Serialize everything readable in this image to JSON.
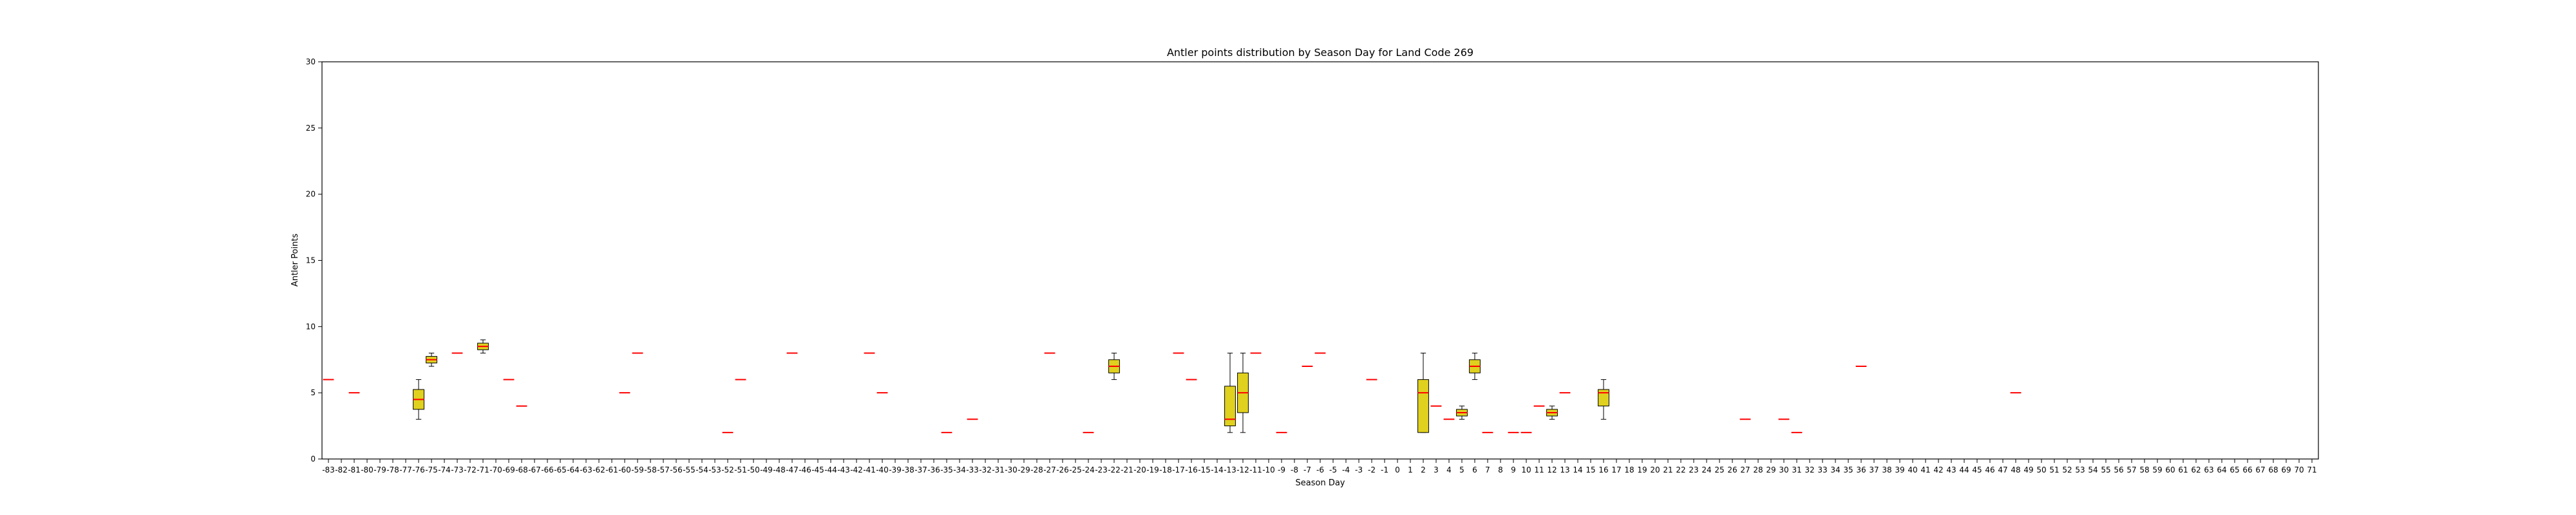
{
  "chart_data": {
    "type": "box",
    "title": "Antler points distribution by Season Day for Land Code 269",
    "xlabel": "Season Day",
    "ylabel": "Antler Points",
    "ylim": [
      0,
      30
    ],
    "yticks": [
      0,
      5,
      10,
      15,
      20,
      25,
      30
    ],
    "categories": [
      "-83",
      "-82",
      "-81",
      "-80",
      "-79",
      "-78",
      "-77",
      "-76",
      "-75",
      "-74",
      "-73",
      "-72",
      "-71",
      "-70",
      "-69",
      "-68",
      "-67",
      "-66",
      "-65",
      "-64",
      "-63",
      "-62",
      "-61",
      "-60",
      "-59",
      "-58",
      "-57",
      "-56",
      "-55",
      "-54",
      "-53",
      "-52",
      "-51",
      "-50",
      "-49",
      "-48",
      "-47",
      "-46",
      "-45",
      "-44",
      "-43",
      "-42",
      "-41",
      "-40",
      "-39",
      "-38",
      "-37",
      "-36",
      "-35",
      "-34",
      "-33",
      "-32",
      "-31",
      "-30",
      "-29",
      "-28",
      "-27",
      "-26",
      "-25",
      "-24",
      "-23",
      "-22",
      "-21",
      "-20",
      "-19",
      "-18",
      "-17",
      "-16",
      "-15",
      "-14",
      "-13",
      "-12",
      "-11",
      "-10",
      "-9",
      "-8",
      "-7",
      "-6",
      "-5",
      "-4",
      "-3",
      "-2",
      "-1",
      "0",
      "1",
      "2",
      "3",
      "4",
      "5",
      "6",
      "7",
      "8",
      "9",
      "10",
      "11",
      "12",
      "13",
      "14",
      "15",
      "16",
      "17",
      "18",
      "19",
      "20",
      "21",
      "22",
      "23",
      "24",
      "25",
      "26",
      "27",
      "28",
      "29",
      "30",
      "31",
      "32",
      "33",
      "34",
      "35",
      "36",
      "37",
      "38",
      "39",
      "40",
      "41",
      "42",
      "43",
      "44",
      "45",
      "46",
      "47",
      "48",
      "49",
      "50",
      "51",
      "52",
      "53",
      "54",
      "55",
      "56",
      "57",
      "58",
      "59",
      "60",
      "61",
      "62",
      "63",
      "64",
      "65",
      "66",
      "67",
      "68",
      "69",
      "70",
      "71"
    ],
    "boxes": [
      {
        "day": "-83",
        "whislo": 6,
        "q1": 6,
        "med": 6,
        "q3": 6,
        "whishi": 6
      },
      {
        "day": "-81",
        "whislo": 5,
        "q1": 5,
        "med": 5,
        "q3": 5,
        "whishi": 5
      },
      {
        "day": "-76",
        "whislo": 3,
        "q1": 3.75,
        "med": 4.5,
        "q3": 5.25,
        "whishi": 6
      },
      {
        "day": "-75",
        "whislo": 7,
        "q1": 7.25,
        "med": 7.5,
        "q3": 7.75,
        "whishi": 8
      },
      {
        "day": "-73",
        "whislo": 8,
        "q1": 8,
        "med": 8,
        "q3": 8,
        "whishi": 8
      },
      {
        "day": "-71",
        "whislo": 8,
        "q1": 8.25,
        "med": 8.5,
        "q3": 8.75,
        "whishi": 9
      },
      {
        "day": "-69",
        "whislo": 6,
        "q1": 6,
        "med": 6,
        "q3": 6,
        "whishi": 6
      },
      {
        "day": "-68",
        "whislo": 4,
        "q1": 4,
        "med": 4,
        "q3": 4,
        "whishi": 4
      },
      {
        "day": "-60",
        "whislo": 5,
        "q1": 5,
        "med": 5,
        "q3": 5,
        "whishi": 5
      },
      {
        "day": "-59",
        "whislo": 8,
        "q1": 8,
        "med": 8,
        "q3": 8,
        "whishi": 8
      },
      {
        "day": "-52",
        "whislo": 2,
        "q1": 2,
        "med": 2,
        "q3": 2,
        "whishi": 2
      },
      {
        "day": "-51",
        "whislo": 6,
        "q1": 6,
        "med": 6,
        "q3": 6,
        "whishi": 6
      },
      {
        "day": "-47",
        "whislo": 8,
        "q1": 8,
        "med": 8,
        "q3": 8,
        "whishi": 8
      },
      {
        "day": "-41",
        "whislo": 8,
        "q1": 8,
        "med": 8,
        "q3": 8,
        "whishi": 8
      },
      {
        "day": "-40",
        "whislo": 5,
        "q1": 5,
        "med": 5,
        "q3": 5,
        "whishi": 5
      },
      {
        "day": "-35",
        "whislo": 2,
        "q1": 2,
        "med": 2,
        "q3": 2,
        "whishi": 2
      },
      {
        "day": "-33",
        "whislo": 3,
        "q1": 3,
        "med": 3,
        "q3": 3,
        "whishi": 3
      },
      {
        "day": "-27",
        "whislo": 8,
        "q1": 8,
        "med": 8,
        "q3": 8,
        "whishi": 8
      },
      {
        "day": "-24",
        "whislo": 2,
        "q1": 2,
        "med": 2,
        "q3": 2,
        "whishi": 2
      },
      {
        "day": "-22",
        "whislo": 6,
        "q1": 6.5,
        "med": 7,
        "q3": 7.5,
        "whishi": 8
      },
      {
        "day": "-17",
        "whislo": 8,
        "q1": 8,
        "med": 8,
        "q3": 8,
        "whishi": 8
      },
      {
        "day": "-16",
        "whislo": 6,
        "q1": 6,
        "med": 6,
        "q3": 6,
        "whishi": 6
      },
      {
        "day": "-13",
        "whislo": 2,
        "q1": 2.5,
        "med": 3,
        "q3": 5.5,
        "whishi": 8
      },
      {
        "day": "-12",
        "whislo": 2,
        "q1": 3.5,
        "med": 5,
        "q3": 6.5,
        "whishi": 8
      },
      {
        "day": "-11",
        "whislo": 8,
        "q1": 8,
        "med": 8,
        "q3": 8,
        "whishi": 8
      },
      {
        "day": "-9",
        "whislo": 2,
        "q1": 2,
        "med": 2,
        "q3": 2,
        "whishi": 2
      },
      {
        "day": "-7",
        "whislo": 7,
        "q1": 7,
        "med": 7,
        "q3": 7,
        "whishi": 7
      },
      {
        "day": "-6",
        "whislo": 8,
        "q1": 8,
        "med": 8,
        "q3": 8,
        "whishi": 8
      },
      {
        "day": "-2",
        "whislo": 6,
        "q1": 6,
        "med": 6,
        "q3": 6,
        "whishi": 6
      },
      {
        "day": "2",
        "whislo": 2,
        "q1": 2,
        "med": 5,
        "q3": 6,
        "whishi": 8
      },
      {
        "day": "3",
        "whislo": 4,
        "q1": 4,
        "med": 4,
        "q3": 4,
        "whishi": 4
      },
      {
        "day": "4",
        "whislo": 3,
        "q1": 3,
        "med": 3,
        "q3": 3,
        "whishi": 3
      },
      {
        "day": "5",
        "whislo": 3,
        "q1": 3.25,
        "med": 3.5,
        "q3": 3.75,
        "whishi": 4
      },
      {
        "day": "6",
        "whislo": 6,
        "q1": 6.5,
        "med": 7,
        "q3": 7.5,
        "whishi": 8
      },
      {
        "day": "7",
        "whislo": 2,
        "q1": 2,
        "med": 2,
        "q3": 2,
        "whishi": 2
      },
      {
        "day": "9",
        "whislo": 2,
        "q1": 2,
        "med": 2,
        "q3": 2,
        "whishi": 2
      },
      {
        "day": "10",
        "whislo": 2,
        "q1": 2,
        "med": 2,
        "q3": 2,
        "whishi": 2
      },
      {
        "day": "11",
        "whislo": 4,
        "q1": 4,
        "med": 4,
        "q3": 4,
        "whishi": 4
      },
      {
        "day": "12",
        "whislo": 3,
        "q1": 3.25,
        "med": 3.5,
        "q3": 3.75,
        "whishi": 4
      },
      {
        "day": "13",
        "whislo": 5,
        "q1": 5,
        "med": 5,
        "q3": 5,
        "whishi": 5
      },
      {
        "day": "16",
        "whislo": 3,
        "q1": 4,
        "med": 5,
        "q3": 5.25,
        "whishi": 6
      },
      {
        "day": "27",
        "whislo": 3,
        "q1": 3,
        "med": 3,
        "q3": 3,
        "whishi": 3
      },
      {
        "day": "30",
        "whislo": 3,
        "q1": 3,
        "med": 3,
        "q3": 3,
        "whishi": 3
      },
      {
        "day": "31",
        "whislo": 2,
        "q1": 2,
        "med": 2,
        "q3": 2,
        "whishi": 2
      },
      {
        "day": "36",
        "whislo": 7,
        "q1": 7,
        "med": 7,
        "q3": 7,
        "whishi": 7
      },
      {
        "day": "48",
        "whislo": 5,
        "q1": 5,
        "med": 5,
        "q3": 5,
        "whishi": 5
      }
    ],
    "colors": {
      "box_fill": "#e0d11f",
      "box_edge": "#000000",
      "median": "#ff0000",
      "whisker": "#000000"
    },
    "grid": false,
    "legend": "none"
  }
}
